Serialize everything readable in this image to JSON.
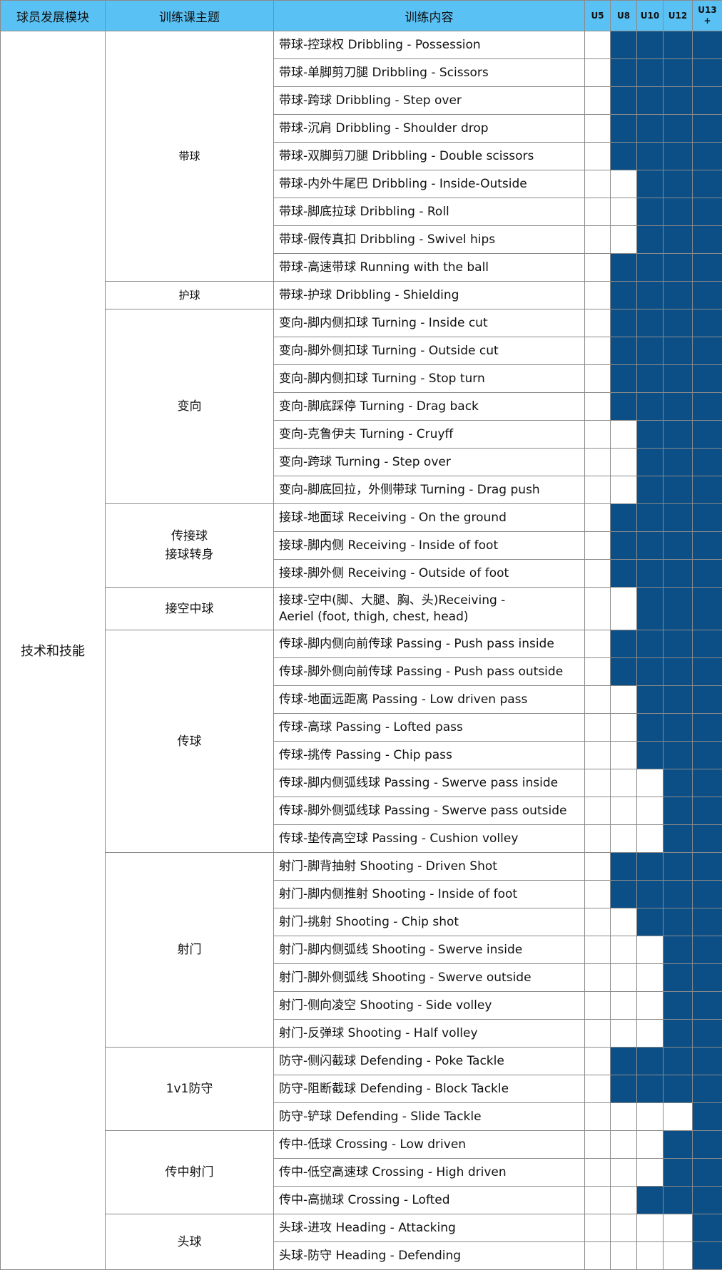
{
  "header": {
    "module": "球员发展模块",
    "theme": "训练课主题",
    "content": "训练内容",
    "ages": [
      "U5",
      "U8",
      "U10",
      "U12",
      "U13\n+"
    ]
  },
  "colors": {
    "header_bg": "#5ac1f4",
    "filled": "#0b4f86",
    "empty": "#ffffff",
    "border": "#8a8a8a"
  },
  "module": "技术和技能",
  "groups": [
    {
      "theme": "带球",
      "small": true,
      "rows": [
        {
          "text": "带球-控球权 Dribbling - Possession",
          "on": [
            0,
            1,
            1,
            1,
            1
          ]
        },
        {
          "text": "带球-单脚剪刀腿 Dribbling - Scissors",
          "on": [
            0,
            1,
            1,
            1,
            1
          ]
        },
        {
          "text": "带球-跨球 Dribbling - Step over",
          "on": [
            0,
            1,
            1,
            1,
            1
          ]
        },
        {
          "text": "带球-沉肩 Dribbling - Shoulder drop",
          "on": [
            0,
            1,
            1,
            1,
            1
          ]
        },
        {
          "text": "带球-双脚剪刀腿 Dribbling - Double scissors",
          "on": [
            0,
            1,
            1,
            1,
            1
          ]
        },
        {
          "text": "带球-内外牛尾巴 Dribbling - Inside-Outside",
          "on": [
            0,
            0,
            1,
            1,
            1
          ]
        },
        {
          "text": "带球-脚底拉球 Dribbling - Roll",
          "on": [
            0,
            0,
            1,
            1,
            1
          ]
        },
        {
          "text": "带球-假传真扣 Dribbling - Swivel hips",
          "on": [
            0,
            0,
            1,
            1,
            1
          ]
        },
        {
          "text": "带球-高速带球 Running with the ball",
          "on": [
            0,
            1,
            1,
            1,
            1
          ]
        }
      ]
    },
    {
      "theme": "护球",
      "small": true,
      "rows": [
        {
          "text": "带球-护球 Dribbling - Shielding",
          "on": [
            0,
            1,
            1,
            1,
            1
          ]
        }
      ]
    },
    {
      "theme": "变向",
      "rows": [
        {
          "text": "变向-脚内侧扣球 Turning - Inside cut",
          "on": [
            0,
            1,
            1,
            1,
            1
          ]
        },
        {
          "text": "变向-脚外侧扣球 Turning - Outside cut",
          "on": [
            0,
            1,
            1,
            1,
            1
          ]
        },
        {
          "text": "变向-脚内侧扣球 Turning - Stop turn",
          "on": [
            0,
            1,
            1,
            1,
            1
          ]
        },
        {
          "text": "变向-脚底踩停 Turning - Drag back",
          "on": [
            0,
            1,
            1,
            1,
            1
          ]
        },
        {
          "text": "变向-克鲁伊夫 Turning - Cruyff",
          "on": [
            0,
            0,
            1,
            1,
            1
          ]
        },
        {
          "text": "变向-跨球 Turning - Step over",
          "on": [
            0,
            0,
            1,
            1,
            1
          ]
        },
        {
          "text": "变向-脚底回拉，外侧带球 Turning - Drag push",
          "on": [
            0,
            0,
            1,
            1,
            1
          ]
        }
      ]
    },
    {
      "theme": "传接球\n接球转身",
      "rows": [
        {
          "text": "接球-地面球 Receiving - On the ground",
          "on": [
            0,
            1,
            1,
            1,
            1
          ]
        },
        {
          "text": "接球-脚内侧 Receiving - Inside of foot",
          "on": [
            0,
            1,
            1,
            1,
            1
          ]
        },
        {
          "text": "接球-脚外侧 Receiving - Outside of foot",
          "on": [
            0,
            1,
            1,
            1,
            1
          ]
        }
      ]
    },
    {
      "theme": "接空中球",
      "rows": [
        {
          "text": "接球-空中(脚、大腿、胸、头)Receiving -\n Aeriel (foot, thigh, chest, head)",
          "on": [
            0,
            0,
            1,
            1,
            1
          ],
          "tall": true
        }
      ]
    },
    {
      "theme": "传球",
      "rows": [
        {
          "text": "传球-脚内侧向前传球 Passing - Push pass inside",
          "on": [
            0,
            1,
            1,
            1,
            1
          ]
        },
        {
          "text": "传球-脚外侧向前传球 Passing - Push pass outside",
          "on": [
            0,
            1,
            1,
            1,
            1
          ]
        },
        {
          "text": "传球-地面远距离 Passing - Low driven pass",
          "on": [
            0,
            0,
            1,
            1,
            1
          ]
        },
        {
          "text": "传球-高球 Passing - Lofted pass",
          "on": [
            0,
            0,
            1,
            1,
            1
          ]
        },
        {
          "text": "传球-挑传 Passing - Chip pass",
          "on": [
            0,
            0,
            1,
            1,
            1
          ]
        },
        {
          "text": "传球-脚内侧弧线球 Passing - Swerve pass inside",
          "on": [
            0,
            0,
            0,
            1,
            1
          ]
        },
        {
          "text": "传球-脚外侧弧线球 Passing - Swerve pass outside",
          "on": [
            0,
            0,
            0,
            1,
            1
          ]
        },
        {
          "text": "传球-垫传高空球 Passing - Cushion volley",
          "on": [
            0,
            0,
            0,
            1,
            1
          ]
        }
      ]
    },
    {
      "theme": "射门",
      "rows": [
        {
          "text": "射门-脚背抽射 Shooting - Driven Shot",
          "on": [
            0,
            1,
            1,
            1,
            1
          ]
        },
        {
          "text": "射门-脚内侧推射 Shooting - Inside of foot",
          "on": [
            0,
            1,
            1,
            1,
            1
          ]
        },
        {
          "text": "射门-挑射 Shooting - Chip shot",
          "on": [
            0,
            0,
            1,
            1,
            1
          ]
        },
        {
          "text": "射门-脚内侧弧线 Shooting - Swerve inside",
          "on": [
            0,
            0,
            0,
            1,
            1
          ]
        },
        {
          "text": "射门-脚外侧弧线 Shooting - Swerve outside",
          "on": [
            0,
            0,
            0,
            1,
            1
          ]
        },
        {
          "text": "射门-侧向凌空 Shooting - Side volley",
          "on": [
            0,
            0,
            0,
            1,
            1
          ]
        },
        {
          "text": "射门-反弹球 Shooting - Half volley",
          "on": [
            0,
            0,
            0,
            1,
            1
          ]
        }
      ]
    },
    {
      "theme": "1v1防守",
      "rows": [
        {
          "text": "防守-侧闪截球 Defending - Poke Tackle",
          "on": [
            0,
            1,
            1,
            1,
            1
          ]
        },
        {
          "text": "防守-阻断截球 Defending - Block Tackle",
          "on": [
            0,
            1,
            1,
            1,
            1
          ]
        },
        {
          "text": "防守-铲球 Defending - Slide Tackle",
          "on": [
            0,
            0,
            0,
            0,
            1
          ]
        }
      ]
    },
    {
      "theme": "传中射门",
      "rows": [
        {
          "text": "传中-低球 Crossing - Low driven",
          "on": [
            0,
            0,
            0,
            1,
            1
          ]
        },
        {
          "text": "传中-低空高速球 Crossing - High driven",
          "on": [
            0,
            0,
            0,
            1,
            1
          ]
        },
        {
          "text": "传中-高抛球 Crossing -  Lofted",
          "on": [
            0,
            0,
            1,
            1,
            1
          ]
        }
      ]
    },
    {
      "theme": "头球",
      "rows": [
        {
          "text": "头球-进攻 Heading - Attacking",
          "on": [
            0,
            0,
            0,
            0,
            1
          ]
        },
        {
          "text": "头球-防守 Heading - Defending",
          "on": [
            0,
            0,
            0,
            0,
            1
          ]
        }
      ]
    }
  ]
}
